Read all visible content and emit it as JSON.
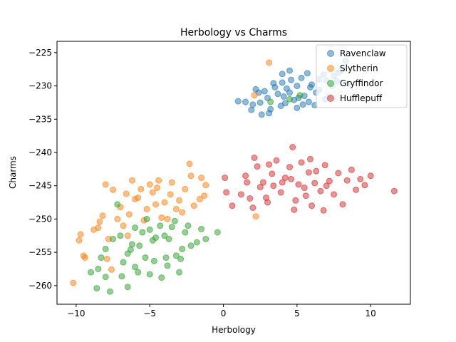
{
  "chart_data": {
    "type": "scatter",
    "title": "Herbology vs Charms",
    "xlabel": "Herbology",
    "ylabel": "Charms",
    "xlim": [
      -11.3,
      12.7
    ],
    "ylim": [
      -262.8,
      -223.3
    ],
    "xticks": [
      -10,
      -5,
      0,
      5,
      10
    ],
    "xtick_labels": [
      "−10",
      "−5",
      "0",
      "5",
      "10"
    ],
    "yticks": [
      -225,
      -230,
      -235,
      -240,
      -245,
      -250,
      -255,
      -260
    ],
    "ytick_labels": [
      "−225",
      "−230",
      "−235",
      "−240",
      "−245",
      "−250",
      "−255",
      "−260"
    ],
    "grid": false,
    "legend_position": "top-right",
    "marker_opacity": 0.5,
    "series": [
      {
        "name": "Ravenclaw",
        "color": "#1f77b4",
        "points": [
          [
            3.0,
            -231.8
          ],
          [
            3.5,
            -230.2
          ],
          [
            4.0,
            -229.5
          ],
          [
            4.5,
            -231.0
          ],
          [
            5.0,
            -230.0
          ],
          [
            5.5,
            -231.5
          ],
          [
            6.0,
            -229.8
          ],
          [
            6.5,
            -230.6
          ],
          [
            7.0,
            -229.2
          ],
          [
            7.5,
            -228.5
          ],
          [
            4.2,
            -232.6
          ],
          [
            4.8,
            -232.1
          ],
          [
            5.3,
            -228.8
          ],
          [
            5.8,
            -232.4
          ],
          [
            6.3,
            -231.0
          ],
          [
            3.2,
            -233.5
          ],
          [
            2.8,
            -230.8
          ],
          [
            2.5,
            -232.5
          ],
          [
            2.0,
            -232.8
          ],
          [
            1.5,
            -232.4
          ],
          [
            1.0,
            -232.3
          ],
          [
            1.9,
            -233.6
          ],
          [
            2.6,
            -234.3
          ],
          [
            3.1,
            -234.1
          ],
          [
            8.0,
            -227.6
          ],
          [
            8.3,
            -226.2
          ],
          [
            7.8,
            -228.0
          ],
          [
            6.8,
            -228.3
          ],
          [
            4.0,
            -228.2
          ],
          [
            4.5,
            -227.7
          ],
          [
            5.7,
            -228.1
          ],
          [
            3.7,
            -231.2
          ],
          [
            4.3,
            -230.4
          ],
          [
            5.1,
            -231.8
          ],
          [
            6.2,
            -232.9
          ],
          [
            7.2,
            -231.6
          ],
          [
            2.2,
            -230.5
          ],
          [
            3.9,
            -233.0
          ],
          [
            5.0,
            -233.3
          ],
          [
            6.5,
            -229.0
          ],
          [
            7.4,
            -230.0
          ],
          [
            8.5,
            -229.7
          ],
          [
            4.6,
            -229.1
          ],
          [
            3.4,
            -229.6
          ],
          [
            5.9,
            -230.2
          ],
          [
            2.4,
            -231.0
          ],
          [
            6.9,
            -232.0
          ],
          [
            4.1,
            -231.6
          ],
          [
            5.4,
            -232.8
          ],
          [
            7.7,
            -229.3
          ]
        ]
      },
      {
        "name": "Slytherin",
        "color": "#ff7f0e",
        "points": [
          [
            -10.2,
            -259.6
          ],
          [
            -9.8,
            -253.2
          ],
          [
            -9.5,
            -255.5
          ],
          [
            -9.4,
            -255.8
          ],
          [
            -9.7,
            -252.3
          ],
          [
            -8.8,
            -251.6
          ],
          [
            -8.5,
            -251.3
          ],
          [
            -8.0,
            -244.8
          ],
          [
            -7.5,
            -245.6
          ],
          [
            -7.2,
            -250.0
          ],
          [
            -7.0,
            -248.2
          ],
          [
            -6.6,
            -246.2
          ],
          [
            -6.2,
            -244.2
          ],
          [
            -6.0,
            -247.0
          ],
          [
            -5.6,
            -245.5
          ],
          [
            -5.2,
            -248.5
          ],
          [
            -4.8,
            -246.0
          ],
          [
            -4.5,
            -245.3
          ],
          [
            -4.0,
            -247.5
          ],
          [
            -3.8,
            -250.0
          ],
          [
            -3.5,
            -244.5
          ],
          [
            -3.0,
            -247.2
          ],
          [
            -2.6,
            -245.5
          ],
          [
            -2.3,
            -241.7
          ],
          [
            -2.0,
            -248.0
          ],
          [
            -1.6,
            -247.0
          ],
          [
            -1.3,
            -246.5
          ],
          [
            -1.5,
            -243.8
          ],
          [
            -1.2,
            -244.9
          ],
          [
            -7.8,
            -253.0
          ],
          [
            -8.2,
            -249.5
          ],
          [
            -6.8,
            -251.0
          ],
          [
            -5.4,
            -250.2
          ],
          [
            -4.2,
            -249.8
          ],
          [
            -3.2,
            -248.5
          ],
          [
            -2.8,
            -249.0
          ],
          [
            -6.4,
            -249.3
          ],
          [
            -5.8,
            -246.8
          ],
          [
            -4.6,
            -247.8
          ],
          [
            -3.6,
            -246.3
          ],
          [
            -7.6,
            -257.6
          ],
          [
            -7.9,
            -256.0
          ],
          [
            -5.0,
            -244.8
          ],
          [
            -2.2,
            -243.5
          ],
          [
            2.2,
            -249.6
          ],
          [
            2.1,
            -231.4
          ],
          [
            3.1,
            -226.5
          ],
          [
            -6.5,
            -252.5
          ],
          [
            -8.4,
            -250.4
          ],
          [
            -4.4,
            -244.2
          ]
        ]
      },
      {
        "name": "Gryffindor",
        "color": "#2ca02c",
        "points": [
          [
            -8.0,
            -258.7
          ],
          [
            -8.5,
            -257.5
          ],
          [
            -7.7,
            -260.9
          ],
          [
            -8.6,
            -260.4
          ],
          [
            -6.5,
            -260.2
          ],
          [
            -5.8,
            -258.0
          ],
          [
            -5.0,
            -258.3
          ],
          [
            -4.2,
            -258.8
          ],
          [
            -3.8,
            -257.0
          ],
          [
            -3.0,
            -258.0
          ],
          [
            -3.2,
            -255.5
          ],
          [
            -2.8,
            -254.5
          ],
          [
            -2.2,
            -254.0
          ],
          [
            -1.8,
            -253.5
          ],
          [
            -1.5,
            -251.5
          ],
          [
            -0.4,
            -252.0
          ],
          [
            -1.2,
            -253.0
          ],
          [
            -8.0,
            -254.5
          ],
          [
            -7.5,
            -253.0
          ],
          [
            -7.0,
            -252.5
          ],
          [
            -6.8,
            -256.5
          ],
          [
            -6.5,
            -255.2
          ],
          [
            -6.2,
            -253.8
          ],
          [
            -6.0,
            -257.2
          ],
          [
            -5.7,
            -254.0
          ],
          [
            -5.5,
            -252.0
          ],
          [
            -5.2,
            -250.0
          ],
          [
            -5.0,
            -251.6
          ],
          [
            -4.8,
            -253.2
          ],
          [
            -4.6,
            -252.8
          ],
          [
            -4.3,
            -251.0
          ],
          [
            -4.0,
            -252.5
          ],
          [
            -3.7,
            -253.0
          ],
          [
            -3.5,
            -251.2
          ],
          [
            -3.3,
            -250.3
          ],
          [
            -2.6,
            -252.0
          ],
          [
            -2.4,
            -251.0
          ],
          [
            -7.2,
            -247.8
          ],
          [
            -8.3,
            -255.8
          ],
          [
            -9.0,
            -258.0
          ],
          [
            -6.9,
            -258.6
          ],
          [
            -5.3,
            -255.8
          ],
          [
            -4.7,
            -256.3
          ],
          [
            -3.9,
            -255.8
          ],
          [
            -2.9,
            -256.0
          ],
          [
            -6.0,
            -251.3
          ],
          [
            -6.3,
            -254.6
          ],
          [
            3.2,
            -232.4
          ],
          [
            4.5,
            -232.0
          ],
          [
            5.2,
            -231.4
          ]
        ]
      },
      {
        "name": "Hufflepuff",
        "color": "#d62728",
        "points": [
          [
            0.1,
            -243.8
          ],
          [
            0.2,
            -246.0
          ],
          [
            0.6,
            -248.0
          ],
          [
            1.2,
            -246.3
          ],
          [
            1.5,
            -243.5
          ],
          [
            1.8,
            -246.9
          ],
          [
            2.0,
            -248.3
          ],
          [
            2.3,
            -242.1
          ],
          [
            2.7,
            -244.5
          ],
          [
            3.0,
            -247.5
          ],
          [
            3.3,
            -243.2
          ],
          [
            3.6,
            -241.2
          ],
          [
            3.9,
            -246.0
          ],
          [
            4.2,
            -243.8
          ],
          [
            4.5,
            -242.2
          ],
          [
            4.7,
            -239.2
          ],
          [
            4.9,
            -247.2
          ],
          [
            5.1,
            -244.8
          ],
          [
            5.3,
            -241.5
          ],
          [
            5.6,
            -246.5
          ],
          [
            5.8,
            -243.0
          ],
          [
            6.0,
            -248.0
          ],
          [
            6.3,
            -242.8
          ],
          [
            6.6,
            -245.8
          ],
          [
            6.9,
            -241.9
          ],
          [
            7.2,
            -244.3
          ],
          [
            7.5,
            -246.3
          ],
          [
            7.8,
            -243.1
          ],
          [
            8.1,
            -247.8
          ],
          [
            8.4,
            -244.2
          ],
          [
            8.7,
            -242.6
          ],
          [
            9.0,
            -245.6
          ],
          [
            9.3,
            -244.0
          ],
          [
            9.6,
            -244.9
          ],
          [
            10.0,
            -243.5
          ],
          [
            11.6,
            -245.8
          ],
          [
            2.5,
            -245.2
          ],
          [
            3.4,
            -245.0
          ],
          [
            4.0,
            -244.5
          ],
          [
            4.6,
            -244.0
          ],
          [
            5.5,
            -245.3
          ],
          [
            6.2,
            -244.6
          ],
          [
            7.0,
            -245.0
          ],
          [
            3.1,
            -241.8
          ],
          [
            4.8,
            -248.6
          ],
          [
            2.1,
            -240.8
          ],
          [
            1.6,
            -244.5
          ],
          [
            6.8,
            -248.7
          ],
          [
            2.9,
            -246.8
          ],
          [
            5.9,
            -241.0
          ]
        ]
      }
    ]
  }
}
